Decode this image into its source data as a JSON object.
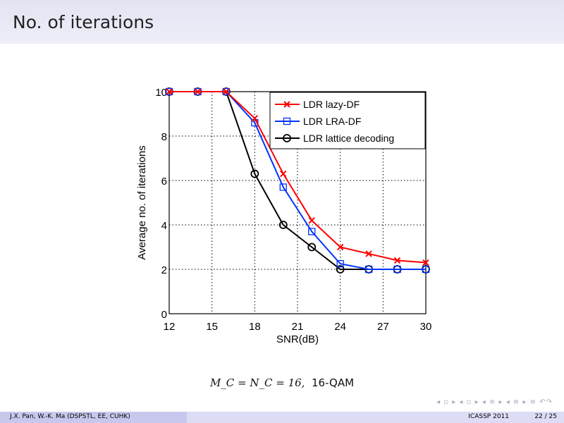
{
  "title": "No. of iterations",
  "caption": {
    "math": "M_C = N_C = 16,",
    "mod": "16-QAM"
  },
  "footer": {
    "authors": "J.X. Pan,  W.-K. Ma  (DSPSTL, EE, CUHK)",
    "conference": "ICASSP 2011",
    "page": "22 / 25",
    "nav": "◂ ▫ ▸ ◂ ▫ ▸ ◂ ≡ ▸ ◂ ≡ ▸  ≡  ↶↷"
  },
  "chart_data": {
    "type": "line",
    "xlabel": "SNR(dB)",
    "ylabel": "Average no. of iterations",
    "xlim": [
      12,
      30
    ],
    "ylim": [
      0,
      10
    ],
    "xticks": [
      12,
      15,
      18,
      21,
      24,
      27,
      30
    ],
    "yticks": [
      0,
      2,
      4,
      6,
      8,
      10
    ],
    "grid": true,
    "legend": "top-right",
    "x": [
      12,
      14,
      16,
      18,
      20,
      22,
      24,
      26,
      28,
      30
    ],
    "series": [
      {
        "name": "LDR lazy-DF",
        "color": "#ff0000",
        "marker": "x",
        "values": [
          10,
          10,
          10,
          8.8,
          6.3,
          4.2,
          3.0,
          2.7,
          2.4,
          2.3
        ]
      },
      {
        "name": "LDR LRA-DF",
        "color": "#0033ff",
        "marker": "square",
        "values": [
          10,
          10,
          10,
          8.6,
          5.7,
          3.7,
          2.25,
          2.0,
          2.0,
          2.0
        ]
      },
      {
        "name": "LDR lattice decoding",
        "color": "#000000",
        "marker": "circle",
        "values": [
          10,
          10,
          10,
          6.3,
          4.0,
          3.0,
          2.0,
          2.0,
          2.0,
          2.0
        ]
      }
    ]
  }
}
